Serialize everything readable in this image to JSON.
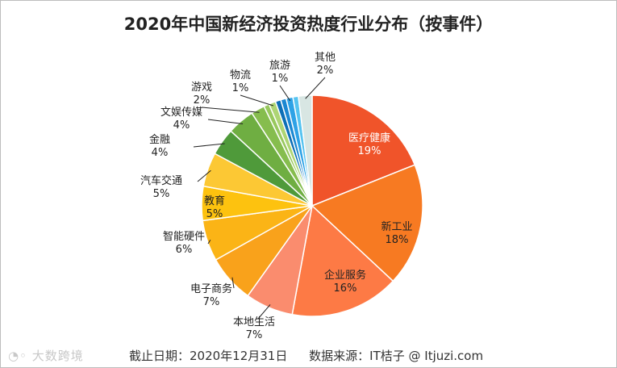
{
  "chart_data": {
    "type": "pie",
    "title": "2020年中国新经济投资热度行业分布（按事件）",
    "start": "top",
    "direction": "clockwise",
    "slices": [
      {
        "name": "医疗健康",
        "label": "19%",
        "value": 19,
        "color": "#f0542a"
      },
      {
        "name": "新工业",
        "label": "18%",
        "value": 18,
        "color": "#f77a22"
      },
      {
        "name": "企业服务",
        "label": "16%",
        "value": 16,
        "color": "#fd7a45"
      },
      {
        "name": "本地生活",
        "label": "7%",
        "value": 7,
        "color": "#fa8c6e"
      },
      {
        "name": "电子商务",
        "label": "7%",
        "value": 7,
        "color": "#f9a21b"
      },
      {
        "name": "智能硬件",
        "label": "6%",
        "value": 6,
        "color": "#fbb416"
      },
      {
        "name": "教育",
        "label": "5%",
        "value": 5,
        "color": "#fdc20f"
      },
      {
        "name": "汽车交通",
        "label": "5%",
        "value": 5,
        "color": "#fcc834"
      },
      {
        "name": "金融",
        "label": "4%",
        "value": 4,
        "color": "#4f9a3a"
      },
      {
        "name": "文娱传媒",
        "label": "4%",
        "value": 4,
        "color": "#6fae42"
      },
      {
        "name": "游戏",
        "label": "2%",
        "value": 2,
        "color": "#86bd4e"
      },
      {
        "name": "",
        "label": "",
        "value": 0.8,
        "color": "#98c85d"
      },
      {
        "name": "物流",
        "label": "1%",
        "value": 1,
        "color": "#aed574"
      },
      {
        "name": "",
        "label": "",
        "value": 0.8,
        "color": "#0d6fb6"
      },
      {
        "name": "",
        "label": "",
        "value": 0.8,
        "color": "#1b88d2"
      },
      {
        "name": "旅游",
        "label": "1%",
        "value": 1,
        "color": "#2ea2e6"
      },
      {
        "name": "",
        "label": "",
        "value": 0.8,
        "color": "#55c3f0"
      },
      {
        "name": "其他",
        "label": "2%",
        "value": 2,
        "color": "#d8e6e3"
      }
    ]
  },
  "footer": {
    "date": "截止日期：2020年12月31日",
    "source": "数据来源：IT桔子 @ Itjuzi.com"
  },
  "watermark": "大数跨境"
}
